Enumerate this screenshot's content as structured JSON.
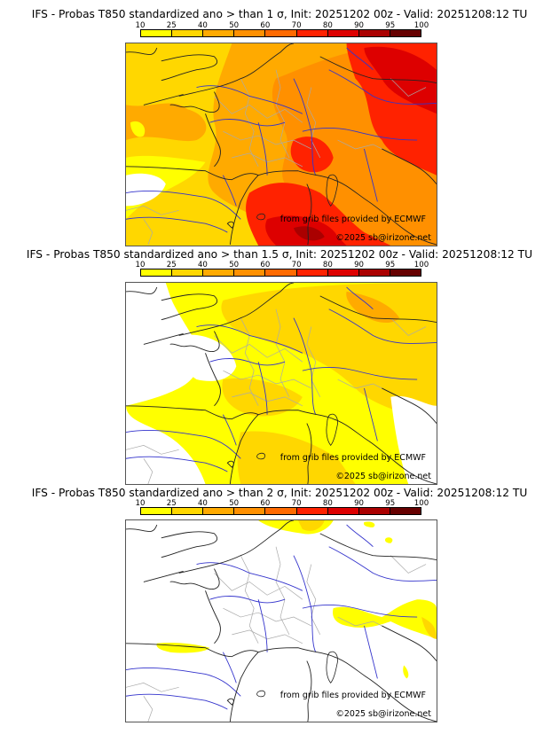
{
  "panels": [
    {
      "title": "IFS - Probas T850  standardized ano > than 1 σ, Init: 20251202 00z - Valid: 20251208:12 TU",
      "threshold": "1 σ",
      "intensity": "high",
      "credit_source": "from grib files provided by ECMWF",
      "credit_copyright": "©2025 sb@irizone.net"
    },
    {
      "title": "IFS - Probas T850  standardized ano > than 1.5 σ, Init: 20251202 00z - Valid: 20251208:12 TU",
      "threshold": "1.5 σ",
      "intensity": "medium",
      "credit_source": "from grib files provided by ECMWF",
      "credit_copyright": "©2025 sb@irizone.net"
    },
    {
      "title": "IFS - Probas T850  standardized ano > than 2 σ, Init: 20251202 00z - Valid: 20251208:12 TU",
      "threshold": "2 σ",
      "intensity": "low",
      "credit_source": "from grib files provided by ECMWF",
      "credit_copyright": "©2025 sb@irizone.net"
    }
  ],
  "colorbar": {
    "ticks": [
      "10",
      "25",
      "40",
      "50",
      "60",
      "70",
      "80",
      "90",
      "95",
      "100"
    ],
    "colors": [
      "#ffff00",
      "#ffd700",
      "#ffaa00",
      "#ff9000",
      "#ff6a00",
      "#ff2200",
      "#dd0000",
      "#aa0000",
      "#660000"
    ]
  },
  "map_colors": {
    "land_border": "#222222",
    "rivers": "#3333cc",
    "regions": "#aaaaaa"
  }
}
